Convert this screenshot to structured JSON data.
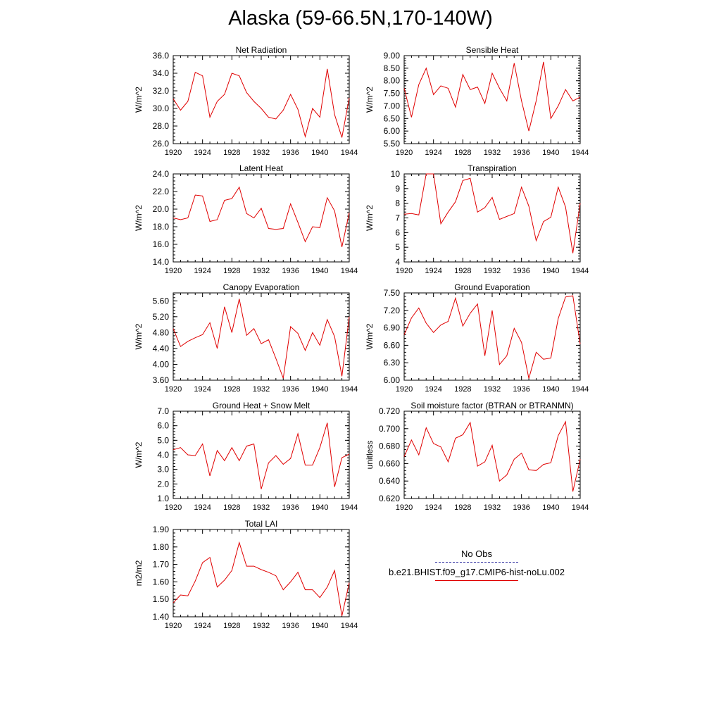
{
  "title": "Alaska (59-66.5N,170-140W)",
  "legend": {
    "entries": [
      {
        "label": "No Obs",
        "color": "#3030a0",
        "style": "dashed"
      },
      {
        "label": "b.e21.BHIST.f09_g17.CMIP6-hist-noLu.002",
        "color": "#e00000",
        "style": "solid"
      }
    ]
  },
  "chart_data": [
    {
      "type": "line",
      "title": "Net Radiation",
      "ylabel": "W/m^2",
      "x": [
        1920,
        1921,
        1922,
        1923,
        1924,
        1925,
        1926,
        1927,
        1928,
        1929,
        1930,
        1931,
        1932,
        1933,
        1934,
        1935,
        1936,
        1937,
        1938,
        1939,
        1940,
        1941,
        1942,
        1943,
        1944
      ],
      "xticks": [
        "1920",
        "1924",
        "1928",
        "1932",
        "1936",
        "1940",
        "1944"
      ],
      "xlim": [
        1920,
        1944
      ],
      "ylim": [
        26.0,
        36.0
      ],
      "yticks": [
        "26.0",
        "28.0",
        "30.0",
        "32.0",
        "34.0",
        "36.0"
      ],
      "series": [
        {
          "values": [
            31.1,
            29.8,
            30.8,
            34.1,
            33.7,
            29.0,
            30.8,
            31.6,
            34.0,
            33.7,
            31.8,
            30.8,
            30.0,
            29.0,
            28.8,
            29.8,
            31.6,
            29.9,
            26.8,
            30.0,
            29.0,
            34.5,
            29.3,
            26.7,
            31.2
          ],
          "color": "#e00000"
        }
      ]
    },
    {
      "type": "line",
      "title": "Sensible Heat",
      "ylabel": "W/m^2",
      "x": [
        1920,
        1921,
        1922,
        1923,
        1924,
        1925,
        1926,
        1927,
        1928,
        1929,
        1930,
        1931,
        1932,
        1933,
        1934,
        1935,
        1936,
        1937,
        1938,
        1939,
        1940,
        1941,
        1942,
        1943,
        1944
      ],
      "xticks": [
        "1920",
        "1924",
        "1928",
        "1932",
        "1936",
        "1940",
        "1944"
      ],
      "xlim": [
        1920,
        1944
      ],
      "ylim": [
        5.5,
        9.0
      ],
      "yticks": [
        "5.50",
        "6.00",
        "6.50",
        "7.00",
        "7.50",
        "8.00",
        "8.50",
        "9.00"
      ],
      "series": [
        {
          "values": [
            7.7,
            6.55,
            7.85,
            8.5,
            7.45,
            7.8,
            7.7,
            6.95,
            8.25,
            7.65,
            7.75,
            7.1,
            8.3,
            7.7,
            7.2,
            8.7,
            7.2,
            6.0,
            7.2,
            8.75,
            6.5,
            7.0,
            7.65,
            7.2,
            7.35
          ],
          "color": "#e00000"
        }
      ]
    },
    {
      "type": "line",
      "title": "Latent Heat",
      "ylabel": "W/m^2",
      "x": [
        1920,
        1921,
        1922,
        1923,
        1924,
        1925,
        1926,
        1927,
        1928,
        1929,
        1930,
        1931,
        1932,
        1933,
        1934,
        1935,
        1936,
        1937,
        1938,
        1939,
        1940,
        1941,
        1942,
        1943,
        1944
      ],
      "xticks": [
        "1920",
        "1924",
        "1928",
        "1932",
        "1936",
        "1940",
        "1944"
      ],
      "xlim": [
        1920,
        1944
      ],
      "ylim": [
        14.0,
        24.0
      ],
      "yticks": [
        "14.0",
        "16.0",
        "18.0",
        "20.0",
        "22.0",
        "24.0"
      ],
      "series": [
        {
          "values": [
            19.0,
            18.8,
            19.0,
            21.6,
            21.5,
            18.6,
            18.8,
            21.0,
            21.2,
            22.5,
            19.5,
            19.0,
            20.1,
            17.8,
            17.7,
            17.8,
            20.6,
            18.5,
            16.3,
            18.0,
            17.9,
            21.3,
            19.8,
            15.7,
            19.6
          ],
          "color": "#e00000"
        }
      ]
    },
    {
      "type": "line",
      "title": "Transpiration",
      "ylabel": "W/m^2",
      "x": [
        1920,
        1921,
        1922,
        1923,
        1924,
        1925,
        1926,
        1927,
        1928,
        1929,
        1930,
        1931,
        1932,
        1933,
        1934,
        1935,
        1936,
        1937,
        1938,
        1939,
        1940,
        1941,
        1942,
        1943,
        1944
      ],
      "xticks": [
        "1920",
        "1924",
        "1928",
        "1932",
        "1936",
        "1940",
        "1944"
      ],
      "xlim": [
        1920,
        1944
      ],
      "ylim": [
        4,
        10
      ],
      "yticks": [
        "4",
        "5",
        "6",
        "7",
        "8",
        "9",
        "10"
      ],
      "series": [
        {
          "values": [
            7.25,
            7.3,
            7.2,
            10.0,
            10.0,
            6.6,
            7.4,
            8.1,
            9.55,
            9.7,
            7.4,
            7.7,
            8.4,
            6.9,
            7.1,
            7.3,
            9.1,
            7.8,
            5.45,
            6.75,
            7.05,
            9.1,
            7.75,
            4.6,
            8.0
          ],
          "color": "#e00000"
        }
      ]
    },
    {
      "type": "line",
      "title": "Canopy Evaporation",
      "ylabel": "W/m^2",
      "x": [
        1920,
        1921,
        1922,
        1923,
        1924,
        1925,
        1926,
        1927,
        1928,
        1929,
        1930,
        1931,
        1932,
        1933,
        1934,
        1935,
        1936,
        1937,
        1938,
        1939,
        1940,
        1941,
        1942,
        1943,
        1944
      ],
      "xticks": [
        "1920",
        "1924",
        "1928",
        "1932",
        "1936",
        "1940",
        "1944"
      ],
      "xlim": [
        1920,
        1944
      ],
      "ylim": [
        3.6,
        5.8
      ],
      "yticks": [
        "3.60",
        "4.00",
        "4.40",
        "4.80",
        "5.20",
        "5.60"
      ],
      "series": [
        {
          "values": [
            4.9,
            4.45,
            4.58,
            4.67,
            4.75,
            5.05,
            4.4,
            5.45,
            4.8,
            5.65,
            4.73,
            4.9,
            4.52,
            4.62,
            4.15,
            3.65,
            4.95,
            4.78,
            4.35,
            4.8,
            4.48,
            5.13,
            4.7,
            3.7,
            5.2
          ],
          "color": "#e00000"
        }
      ]
    },
    {
      "type": "line",
      "title": "Ground Evaporation",
      "ylabel": "W/m^2",
      "x": [
        1920,
        1921,
        1922,
        1923,
        1924,
        1925,
        1926,
        1927,
        1928,
        1929,
        1930,
        1931,
        1932,
        1933,
        1934,
        1935,
        1936,
        1937,
        1938,
        1939,
        1940,
        1941,
        1942,
        1943,
        1944
      ],
      "xticks": [
        "1920",
        "1924",
        "1928",
        "1932",
        "1936",
        "1940",
        "1944"
      ],
      "xlim": [
        1920,
        1944
      ],
      "ylim": [
        6.0,
        7.5
      ],
      "yticks": [
        "6.00",
        "6.30",
        "6.60",
        "6.90",
        "7.20",
        "7.50"
      ],
      "series": [
        {
          "values": [
            6.78,
            7.07,
            7.24,
            6.98,
            6.82,
            6.95,
            7.01,
            7.41,
            6.93,
            7.15,
            7.31,
            6.42,
            7.2,
            6.27,
            6.42,
            6.89,
            6.65,
            6.03,
            6.48,
            6.36,
            6.38,
            7.06,
            7.43,
            7.45,
            6.62
          ],
          "color": "#e00000"
        }
      ]
    },
    {
      "type": "line",
      "title": "Ground Heat + Snow Melt",
      "ylabel": "W/m^2",
      "x": [
        1920,
        1921,
        1922,
        1923,
        1924,
        1925,
        1926,
        1927,
        1928,
        1929,
        1930,
        1931,
        1932,
        1933,
        1934,
        1935,
        1936,
        1937,
        1938,
        1939,
        1940,
        1941,
        1942,
        1943,
        1944
      ],
      "xticks": [
        "1920",
        "1924",
        "1928",
        "1932",
        "1936",
        "1940",
        "1944"
      ],
      "xlim": [
        1920,
        1944
      ],
      "ylim": [
        1.0,
        7.0
      ],
      "yticks": [
        "1.0",
        "2.0",
        "3.0",
        "4.0",
        "5.0",
        "6.0",
        "7.0"
      ],
      "series": [
        {
          "values": [
            4.35,
            4.5,
            4.0,
            3.95,
            4.75,
            2.55,
            4.3,
            3.6,
            4.5,
            3.6,
            4.6,
            4.75,
            1.65,
            3.45,
            3.95,
            3.35,
            3.75,
            5.45,
            3.3,
            3.3,
            4.5,
            6.2,
            1.8,
            3.8,
            4.05
          ],
          "color": "#e00000"
        }
      ]
    },
    {
      "type": "line",
      "title": "Soil moisture factor (BTRAN or BTRANMN)",
      "ylabel": "unitless",
      "x": [
        1920,
        1921,
        1922,
        1923,
        1924,
        1925,
        1926,
        1927,
        1928,
        1929,
        1930,
        1931,
        1932,
        1933,
        1934,
        1935,
        1936,
        1937,
        1938,
        1939,
        1940,
        1941,
        1942,
        1943,
        1944
      ],
      "xticks": [
        "1920",
        "1924",
        "1928",
        "1932",
        "1936",
        "1940",
        "1944"
      ],
      "xlim": [
        1920,
        1944
      ],
      "ylim": [
        0.62,
        0.72
      ],
      "yticks": [
        "0.620",
        "0.640",
        "0.660",
        "0.680",
        "0.700",
        "0.720"
      ],
      "series": [
        {
          "values": [
            0.668,
            0.687,
            0.67,
            0.701,
            0.683,
            0.679,
            0.662,
            0.689,
            0.693,
            0.707,
            0.657,
            0.662,
            0.681,
            0.64,
            0.647,
            0.665,
            0.672,
            0.653,
            0.652,
            0.659,
            0.661,
            0.692,
            0.708,
            0.628,
            0.665
          ],
          "color": "#e00000"
        }
      ]
    },
    {
      "type": "line",
      "title": "Total LAI",
      "ylabel": "m2/m2",
      "x": [
        1920,
        1921,
        1922,
        1923,
        1924,
        1925,
        1926,
        1927,
        1928,
        1929,
        1930,
        1931,
        1932,
        1933,
        1934,
        1935,
        1936,
        1937,
        1938,
        1939,
        1940,
        1941,
        1942,
        1943,
        1944
      ],
      "xticks": [
        "1920",
        "1924",
        "1928",
        "1932",
        "1936",
        "1940",
        "1944"
      ],
      "xlim": [
        1920,
        1944
      ],
      "ylim": [
        1.4,
        1.9
      ],
      "yticks": [
        "1.40",
        "1.50",
        "1.60",
        "1.70",
        "1.80",
        "1.90"
      ],
      "series": [
        {
          "values": [
            1.48,
            1.525,
            1.52,
            1.605,
            1.71,
            1.74,
            1.57,
            1.61,
            1.665,
            1.825,
            1.69,
            1.69,
            1.67,
            1.655,
            1.635,
            1.555,
            1.6,
            1.655,
            1.555,
            1.555,
            1.51,
            1.57,
            1.665,
            1.405,
            1.595
          ],
          "color": "#e00000"
        }
      ]
    }
  ]
}
